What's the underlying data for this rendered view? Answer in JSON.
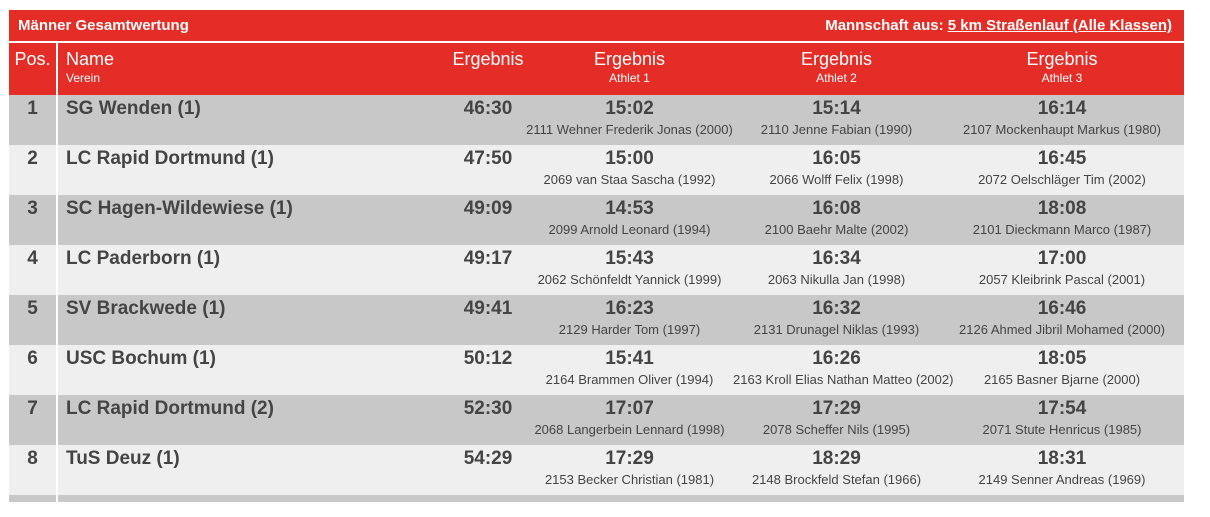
{
  "header": {
    "title": "Männer Gesamtwertung",
    "team_prefix": "Mannschaft aus: ",
    "team_link": "5 km Straßenlauf (Alle Klassen)"
  },
  "columns": {
    "pos": "Pos.",
    "name": "Name",
    "name_sub": "Verein",
    "result": "Ergebnis",
    "athlete1_title": "Ergebnis",
    "athlete1_sub": "Athlet 1",
    "athlete2_title": "Ergebnis",
    "athlete2_sub": "Athlet 2",
    "athlete3_title": "Ergebnis",
    "athlete3_sub": "Athlet 3"
  },
  "rows": [
    {
      "pos": "1",
      "team": "SG Wenden (1)",
      "result": "46:30",
      "a1_time": "15:02",
      "a1_name": "2111 Wehner Frederik Jonas (2000)",
      "a2_time": "15:14",
      "a2_name": "2110 Jenne Fabian (1990)",
      "a3_time": "16:14",
      "a3_name": "2107 Mockenhaupt Markus (1980)"
    },
    {
      "pos": "2",
      "team": "LC Rapid Dortmund (1)",
      "result": "47:50",
      "a1_time": "15:00",
      "a1_name": "2069 van Staa Sascha (1992)",
      "a2_time": "16:05",
      "a2_name": "2066 Wolff Felix (1998)",
      "a3_time": "16:45",
      "a3_name": "2072 Oelschläger Tim (2002)"
    },
    {
      "pos": "3",
      "team": "SC Hagen-Wildewiese (1)",
      "result": "49:09",
      "a1_time": "14:53",
      "a1_name": "2099 Arnold Leonard (1994)",
      "a2_time": "16:08",
      "a2_name": "2100 Baehr Malte (2002)",
      "a3_time": "18:08",
      "a3_name": "2101 Dieckmann Marco (1987)"
    },
    {
      "pos": "4",
      "team": "LC Paderborn (1)",
      "result": "49:17",
      "a1_time": "15:43",
      "a1_name": "2062 Schönfeldt Yannick (1999)",
      "a2_time": "16:34",
      "a2_name": "2063 Nikulla Jan (1998)",
      "a3_time": "17:00",
      "a3_name": "2057 Kleibrink Pascal (2001)"
    },
    {
      "pos": "5",
      "team": "SV Brackwede (1)",
      "result": "49:41",
      "a1_time": "16:23",
      "a1_name": "2129 Harder Tom (1997)",
      "a2_time": "16:32",
      "a2_name": "2131 Drunagel Niklas (1993)",
      "a3_time": "16:46",
      "a3_name": "2126 Ahmed Jibril Mohamed (2000)"
    },
    {
      "pos": "6",
      "team": "USC Bochum (1)",
      "result": "50:12",
      "a1_time": "15:41",
      "a1_name": "2164 Brammen Oliver (1994)",
      "a2_time": "16:26",
      "a2_name": "2163 Kroll Elias Nathan Matteo (2002)",
      "a3_time": "18:05",
      "a3_name": "2165 Basner Bjarne (2000)"
    },
    {
      "pos": "7",
      "team": "LC Rapid Dortmund (2)",
      "result": "52:30",
      "a1_time": "17:07",
      "a1_name": "2068 Langerbein Lennard (1998)",
      "a2_time": "17:29",
      "a2_name": "2078 Scheffer Nils (1995)",
      "a3_time": "17:54",
      "a3_name": "2071 Stute Henricus (1985)"
    },
    {
      "pos": "8",
      "team": "TuS Deuz (1)",
      "result": "54:29",
      "a1_time": "17:29",
      "a1_name": "2153 Becker Christian (1981)",
      "a2_time": "18:29",
      "a2_name": "2148 Brockfeld Stefan (1966)",
      "a3_time": "18:31",
      "a3_name": "2149 Senner Andreas (1969)"
    }
  ]
}
